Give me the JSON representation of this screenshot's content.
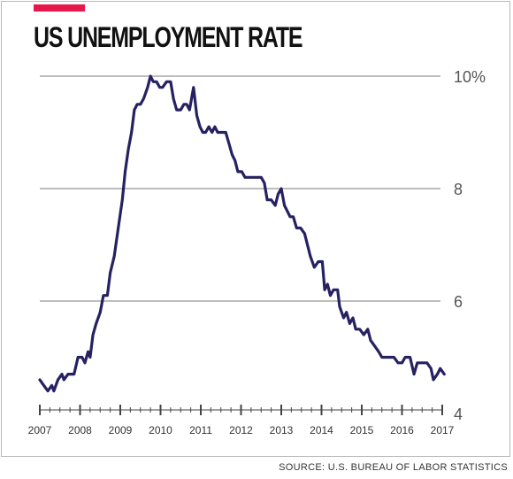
{
  "title": "US UNEMPLOYMENT RATE",
  "source": "SOURCE: U.S. BUREAU OF LABOR STATISTICS",
  "colors": {
    "accent": "#e8174b",
    "line": "#262262",
    "grid": "#bdbdbd",
    "axis": "#444444",
    "text": "#333333"
  },
  "chart_data": {
    "type": "line",
    "title": "US UNEMPLOYMENT RATE",
    "xlabel": "",
    "ylabel": "",
    "ylim": [
      4,
      10
    ],
    "xlim": [
      2007,
      2017
    ],
    "y_ticks": [
      {
        "value": 10,
        "label": "10%"
      },
      {
        "value": 8,
        "label": "8"
      },
      {
        "value": 6,
        "label": "6"
      },
      {
        "value": 4,
        "label": "4"
      }
    ],
    "x_ticks": [
      {
        "value": 2007,
        "label": "2007"
      },
      {
        "value": 2008,
        "label": "2008"
      },
      {
        "value": 2009,
        "label": "2009"
      },
      {
        "value": 2010,
        "label": "2010"
      },
      {
        "value": 2011,
        "label": "2011"
      },
      {
        "value": 2012,
        "label": "2012"
      },
      {
        "value": 2013,
        "label": "2013"
      },
      {
        "value": 2014,
        "label": "2014"
      },
      {
        "value": 2015,
        "label": "2015"
      },
      {
        "value": 2016,
        "label": "2016"
      },
      {
        "value": 2017,
        "label": "2017"
      }
    ],
    "grid": true,
    "series": [
      {
        "points": [
          [
            2007.0,
            4.6
          ],
          [
            2007.1,
            4.5
          ],
          [
            2007.2,
            4.4
          ],
          [
            2007.3,
            4.5
          ],
          [
            2007.35,
            4.4
          ],
          [
            2007.45,
            4.6
          ],
          [
            2007.55,
            4.7
          ],
          [
            2007.6,
            4.6
          ],
          [
            2007.7,
            4.7
          ],
          [
            2007.85,
            4.7
          ],
          [
            2007.95,
            5.0
          ],
          [
            2008.05,
            5.0
          ],
          [
            2008.12,
            4.9
          ],
          [
            2008.2,
            5.1
          ],
          [
            2008.25,
            5.0
          ],
          [
            2008.32,
            5.4
          ],
          [
            2008.4,
            5.6
          ],
          [
            2008.5,
            5.8
          ],
          [
            2008.58,
            6.1
          ],
          [
            2008.68,
            6.1
          ],
          [
            2008.75,
            6.5
          ],
          [
            2008.85,
            6.8
          ],
          [
            2008.95,
            7.3
          ],
          [
            2009.05,
            7.8
          ],
          [
            2009.12,
            8.3
          ],
          [
            2009.2,
            8.7
          ],
          [
            2009.28,
            9.0
          ],
          [
            2009.35,
            9.4
          ],
          [
            2009.42,
            9.5
          ],
          [
            2009.5,
            9.5
          ],
          [
            2009.58,
            9.6
          ],
          [
            2009.68,
            9.8
          ],
          [
            2009.75,
            10.0
          ],
          [
            2009.82,
            9.9
          ],
          [
            2009.9,
            9.9
          ],
          [
            2009.98,
            9.8
          ],
          [
            2010.05,
            9.8
          ],
          [
            2010.15,
            9.9
          ],
          [
            2010.25,
            9.9
          ],
          [
            2010.32,
            9.6
          ],
          [
            2010.4,
            9.4
          ],
          [
            2010.5,
            9.4
          ],
          [
            2010.58,
            9.5
          ],
          [
            2010.65,
            9.5
          ],
          [
            2010.72,
            9.4
          ],
          [
            2010.82,
            9.8
          ],
          [
            2010.9,
            9.3
          ],
          [
            2010.98,
            9.1
          ],
          [
            2011.05,
            9.0
          ],
          [
            2011.12,
            9.0
          ],
          [
            2011.2,
            9.1
          ],
          [
            2011.28,
            9.0
          ],
          [
            2011.35,
            9.1
          ],
          [
            2011.42,
            9.0
          ],
          [
            2011.52,
            9.0
          ],
          [
            2011.62,
            9.0
          ],
          [
            2011.7,
            8.8
          ],
          [
            2011.78,
            8.6
          ],
          [
            2011.85,
            8.5
          ],
          [
            2011.92,
            8.3
          ],
          [
            2012.02,
            8.3
          ],
          [
            2012.1,
            8.2
          ],
          [
            2012.2,
            8.2
          ],
          [
            2012.3,
            8.2
          ],
          [
            2012.42,
            8.2
          ],
          [
            2012.5,
            8.2
          ],
          [
            2012.58,
            8.1
          ],
          [
            2012.65,
            7.8
          ],
          [
            2012.75,
            7.8
          ],
          [
            2012.85,
            7.7
          ],
          [
            2012.92,
            7.9
          ],
          [
            2013.0,
            8.0
          ],
          [
            2013.08,
            7.7
          ],
          [
            2013.15,
            7.6
          ],
          [
            2013.22,
            7.5
          ],
          [
            2013.3,
            7.5
          ],
          [
            2013.38,
            7.3
          ],
          [
            2013.48,
            7.3
          ],
          [
            2013.58,
            7.2
          ],
          [
            2013.65,
            7.0
          ],
          [
            2013.72,
            6.8
          ],
          [
            2013.82,
            6.6
          ],
          [
            2013.92,
            6.7
          ],
          [
            2014.02,
            6.7
          ],
          [
            2014.08,
            6.2
          ],
          [
            2014.15,
            6.3
          ],
          [
            2014.22,
            6.1
          ],
          [
            2014.3,
            6.2
          ],
          [
            2014.4,
            6.2
          ],
          [
            2014.45,
            5.9
          ],
          [
            2014.55,
            5.7
          ],
          [
            2014.62,
            5.8
          ],
          [
            2014.7,
            5.6
          ],
          [
            2014.78,
            5.7
          ],
          [
            2014.85,
            5.5
          ],
          [
            2014.95,
            5.5
          ],
          [
            2015.05,
            5.4
          ],
          [
            2015.15,
            5.5
          ],
          [
            2015.22,
            5.3
          ],
          [
            2015.32,
            5.2
          ],
          [
            2015.42,
            5.1
          ],
          [
            2015.5,
            5.0
          ],
          [
            2015.6,
            5.0
          ],
          [
            2015.7,
            5.0
          ],
          [
            2015.8,
            5.0
          ],
          [
            2015.9,
            4.9
          ],
          [
            2016.0,
            4.9
          ],
          [
            2016.08,
            5.0
          ],
          [
            2016.2,
            5.0
          ],
          [
            2016.3,
            4.7
          ],
          [
            2016.38,
            4.9
          ],
          [
            2016.5,
            4.9
          ],
          [
            2016.62,
            4.9
          ],
          [
            2016.72,
            4.8
          ],
          [
            2016.78,
            4.6
          ],
          [
            2016.88,
            4.7
          ],
          [
            2016.95,
            4.8
          ],
          [
            2017.05,
            4.7
          ]
        ]
      }
    ]
  }
}
